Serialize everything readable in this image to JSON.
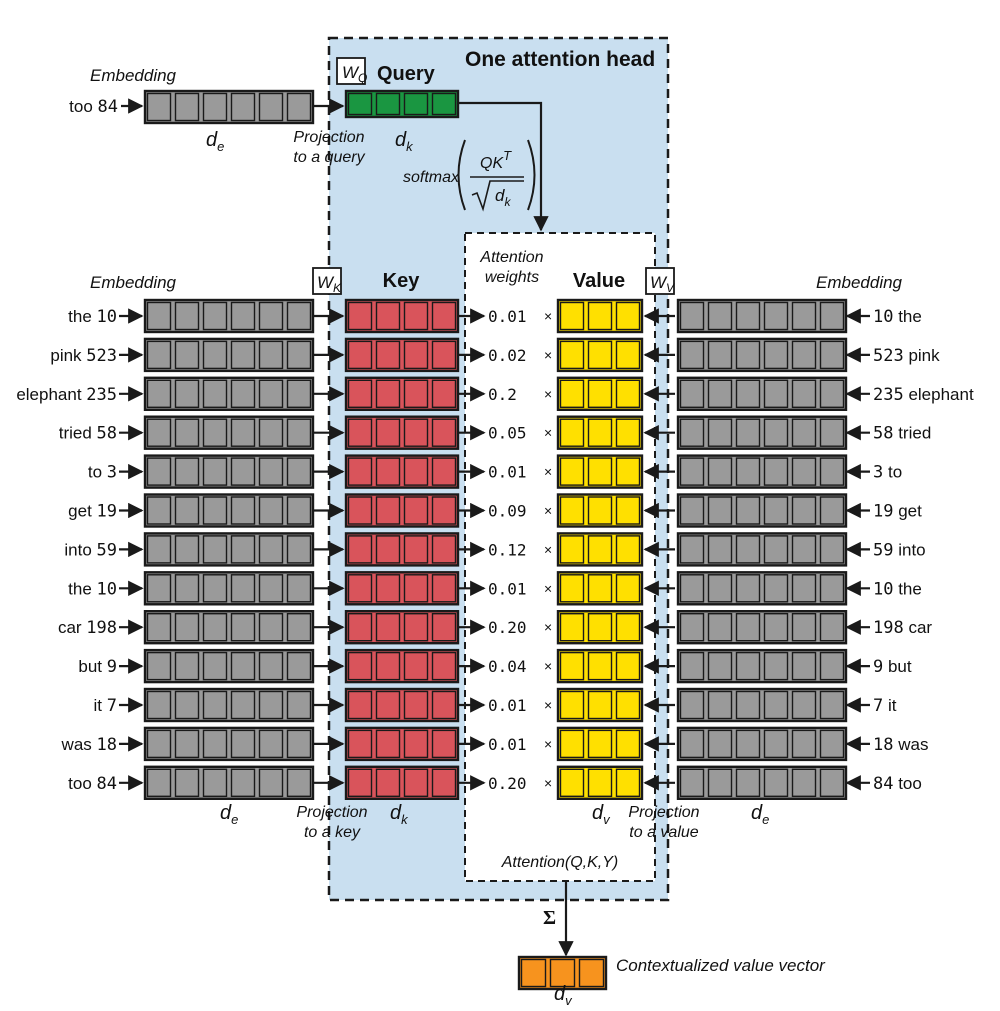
{
  "head_title": "One attention head",
  "query": {
    "token_word": "too",
    "token_id": "84",
    "embedding_label": "Embedding",
    "weight_label": "W",
    "weight_sub": "Q",
    "vector_label": "Query",
    "projection_label": [
      "Projection",
      "to a query"
    ],
    "dim_label": "d",
    "dim_sub": "k",
    "de_label": "d",
    "de_sub": "e"
  },
  "softmax": {
    "prefix": "softmax",
    "numerator": "QK",
    "superscript": "T",
    "denom_var": "d",
    "denom_sub": "k"
  },
  "left_embedding_label": "Embedding",
  "right_embedding_label": "Embedding",
  "key": {
    "weight_label": "W",
    "weight_sub": "K",
    "vector_label": "Key",
    "projection_label": [
      "Projection",
      "to a key"
    ],
    "dim_label": "d",
    "dim_sub": "k",
    "de_label": "d",
    "de_sub": "e"
  },
  "value": {
    "weight_label": "W",
    "weight_sub": "V",
    "vector_label": "Value",
    "projection_label": [
      "Projection",
      "to a value"
    ],
    "dim_label": "d",
    "dim_sub": "v",
    "de_label": "d",
    "de_sub": "e"
  },
  "attention_weights_label": [
    "Attention",
    "weights"
  ],
  "attention_formula": "Attention(Q,K,Y)",
  "multiply_symbol": "×",
  "sum_symbol": "Σ",
  "output": {
    "label": "Contextualized value vector",
    "dim_label": "d",
    "dim_sub": "v"
  },
  "tokens": [
    {
      "word": "the",
      "id": "10",
      "weight": "0.01"
    },
    {
      "word": "pink",
      "id": "523",
      "weight": "0.02"
    },
    {
      "word": "elephant",
      "id": "235",
      "weight": "0.2"
    },
    {
      "word": "tried",
      "id": "58",
      "weight": "0.05"
    },
    {
      "word": "to",
      "id": "3",
      "weight": "0.01"
    },
    {
      "word": "get",
      "id": "19",
      "weight": "0.09"
    },
    {
      "word": "into",
      "id": "59",
      "weight": "0.12"
    },
    {
      "word": "the",
      "id": "10",
      "weight": "0.01"
    },
    {
      "word": "car",
      "id": "198",
      "weight": "0.20"
    },
    {
      "word": "but",
      "id": "9",
      "weight": "0.04"
    },
    {
      "word": "it",
      "id": "7",
      "weight": "0.01"
    },
    {
      "word": "was",
      "id": "18",
      "weight": "0.01"
    },
    {
      "word": "too",
      "id": "84",
      "weight": "0.20"
    }
  ],
  "colors": {
    "head_background": "#c9dff0",
    "embedding_cell": "#9a9a9a",
    "query_cell": "#1a9641",
    "key_cell": "#d9545b",
    "value_cell": "#ffe000",
    "output_cell": "#f7931e",
    "stroke": "#1a1a1a"
  }
}
